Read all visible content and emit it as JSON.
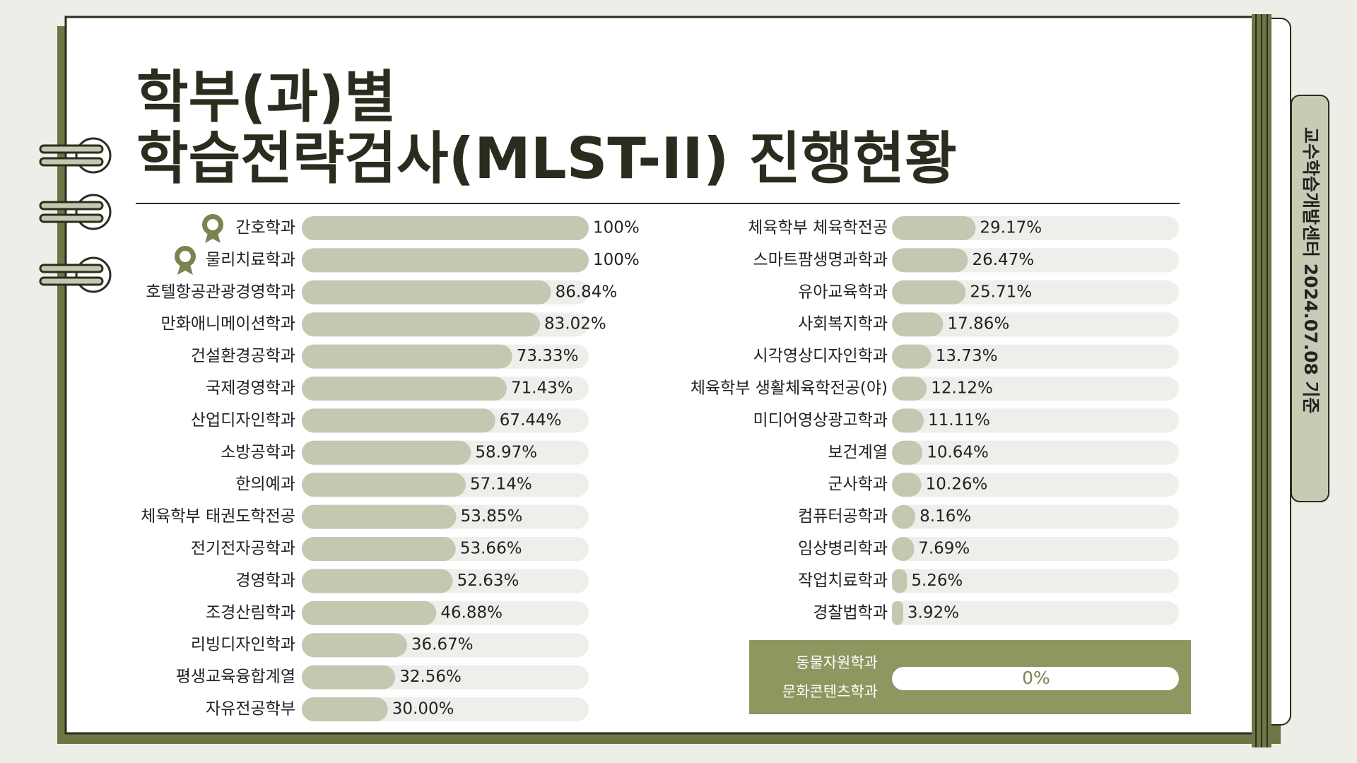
{
  "title_lines": [
    "학부(과)별",
    "학습전략검사(MLST-II) 진행현황"
  ],
  "side_label": "교수학습개발센터  2024.07.08 기준",
  "chart_data": [
    {
      "type": "bar",
      "orientation": "horizontal",
      "color": "#c5c8b0",
      "track_color": "#f0eeeb",
      "xlim": [
        0,
        100
      ],
      "categories": [
        "간호학과",
        "물리치료학과",
        "호텔항공관광경영학과",
        "만화애니메이션학과",
        "건설환경공학과",
        "국제경영학과",
        "산업디자인학과",
        "소방공학과",
        "한의예과",
        "체육학부 태권도학전공",
        "전기전자공학과",
        "경영학과",
        "조경산림학과",
        "리빙디자인학과",
        "평생교육융합계열",
        "자유전공학부"
      ],
      "values": [
        100,
        100,
        86.84,
        83.02,
        73.33,
        71.43,
        67.44,
        58.97,
        57.14,
        53.85,
        53.66,
        52.63,
        46.88,
        36.67,
        32.56,
        30
      ],
      "value_labels": [
        "100%",
        "100%",
        "86.84%",
        "83.02%",
        "73.33%",
        "71.43%",
        "67.44%",
        "58.97%",
        "57.14%",
        "53.85%",
        "53.66%",
        "52.63%",
        "46.88%",
        "36.67%",
        "32.56%",
        "30.00%"
      ]
    },
    {
      "type": "bar",
      "orientation": "horizontal",
      "color": "#c5c8b0",
      "track_color": "#f0eeeb",
      "xlim": [
        0,
        100
      ],
      "categories": [
        "체육학부 체육학전공",
        "스마트팜생명과학과",
        "유아교육학과",
        "사회복지학과",
        "시각영상디자인학과",
        "체육학부 생활체육학전공(야)",
        "미디어영상광고학과",
        "보건계열",
        "군사학과",
        "컴퓨터공학과",
        "임상병리학과",
        "작업치료학과",
        "경찰법학과"
      ],
      "values": [
        29.17,
        26.47,
        25.71,
        17.86,
        13.73,
        12.12,
        11.11,
        10.64,
        10.26,
        8.16,
        7.69,
        5.26,
        3.92
      ],
      "value_labels": [
        "29.17%",
        "26.47%",
        "25.71%",
        "17.86%",
        "13.73%",
        "12.12%",
        "11.11%",
        "10.64%",
        "10.26%",
        "8.16%",
        "7.69%",
        "5.26%",
        "3.92%"
      ]
    }
  ],
  "zero_group": {
    "categories": [
      "동물자원학과",
      "문화콘텐츠학과"
    ],
    "value": 0,
    "value_label": "0%"
  }
}
